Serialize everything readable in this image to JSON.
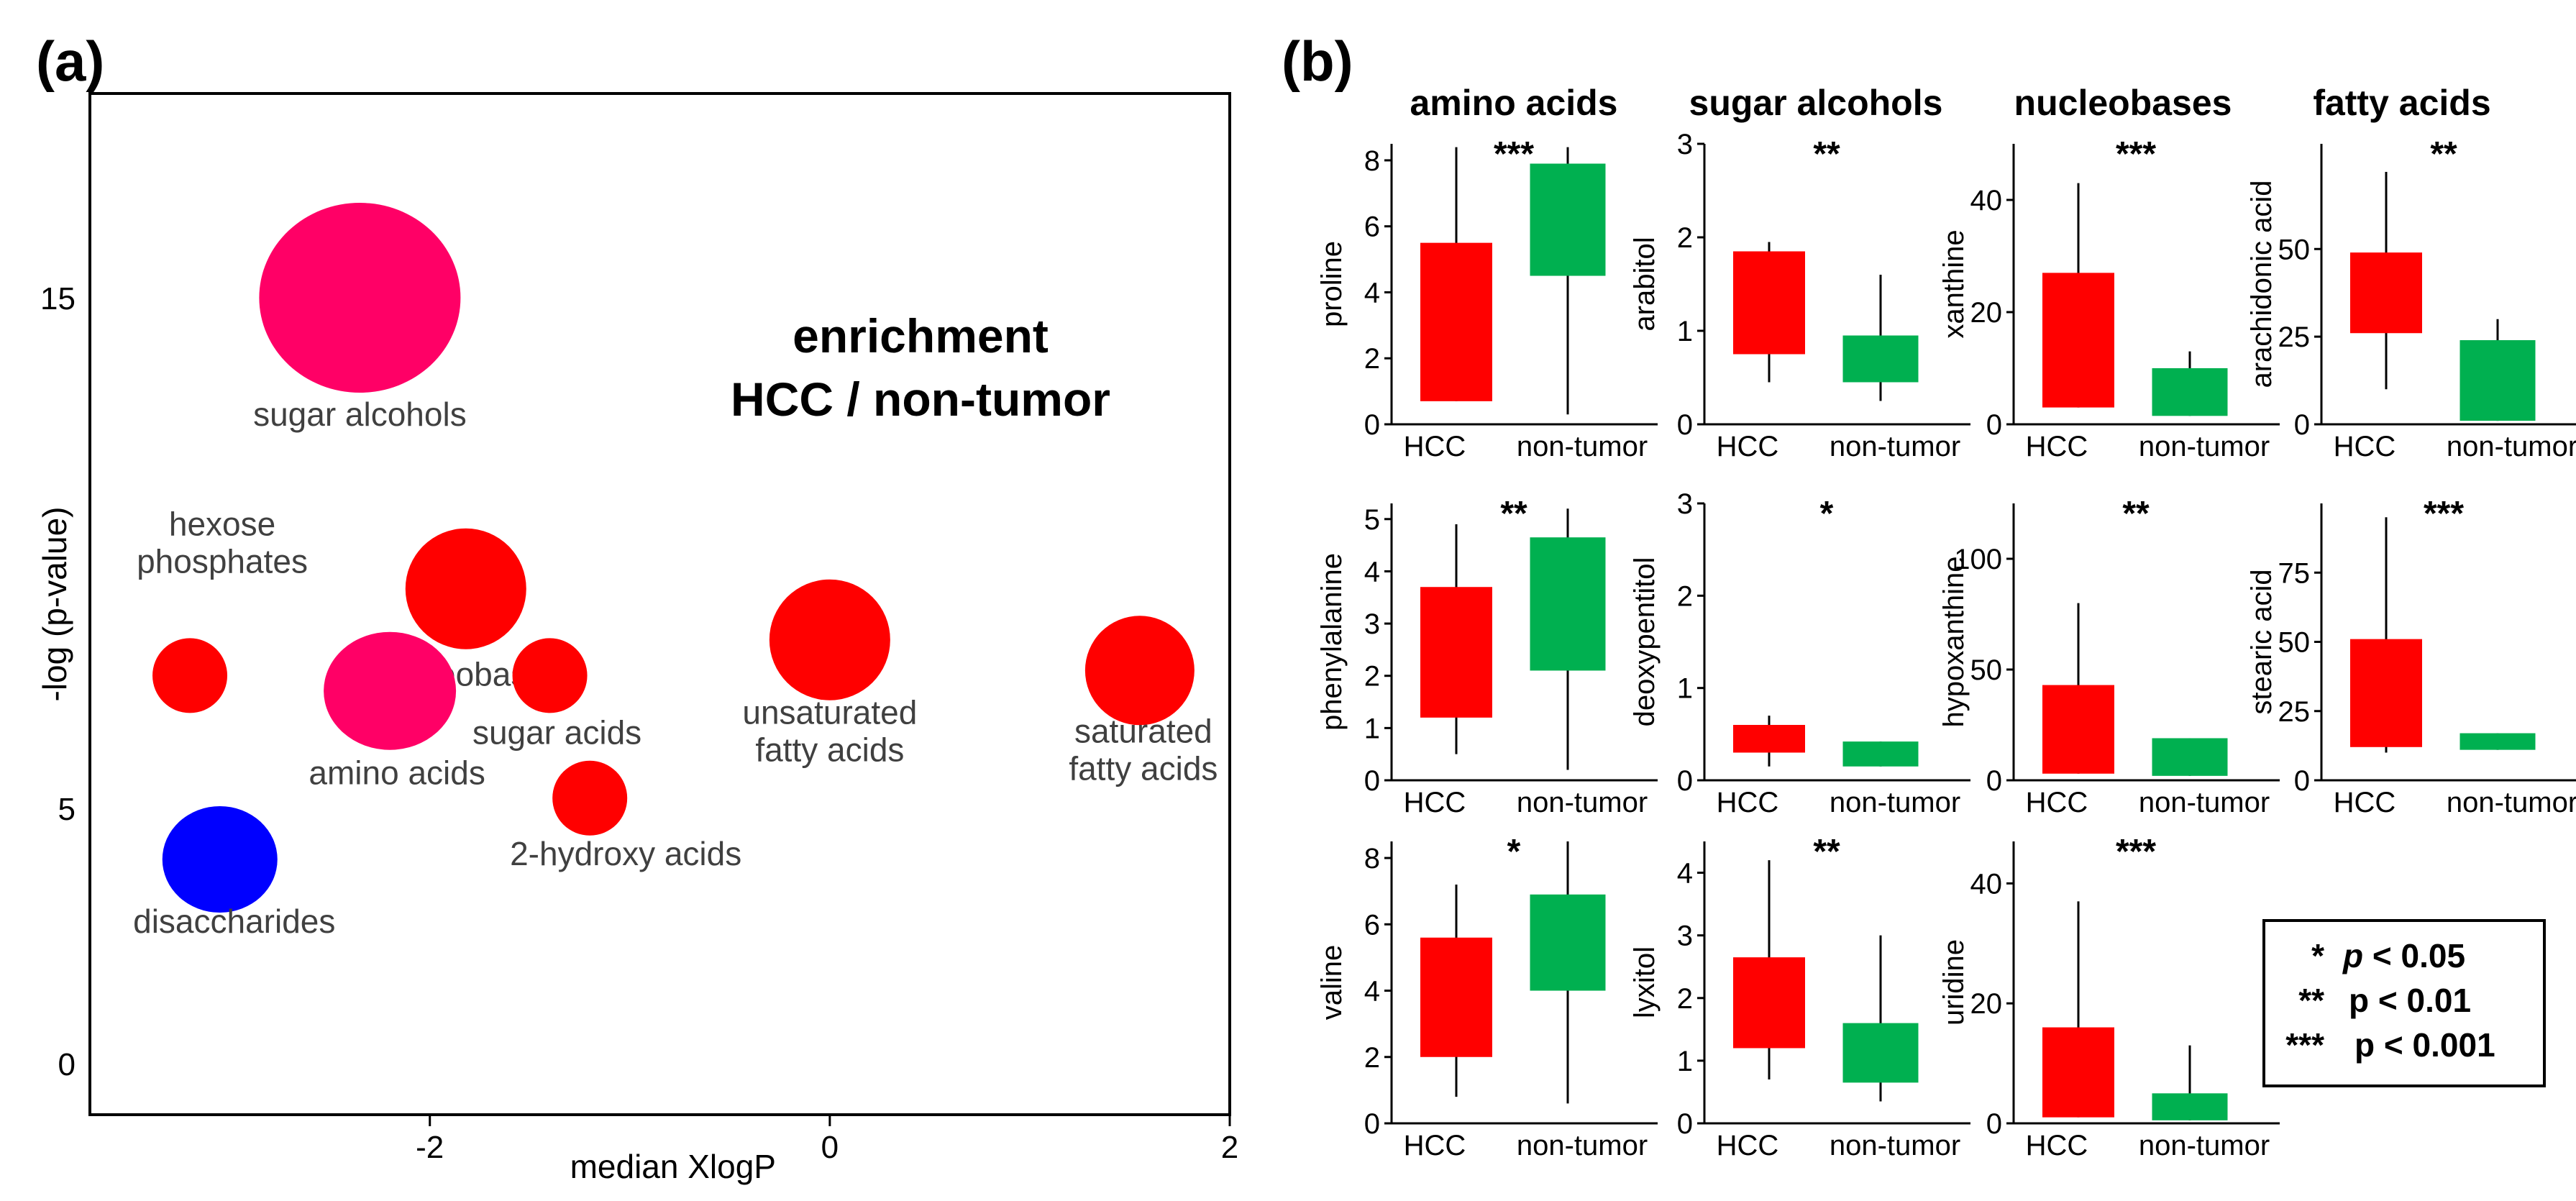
{
  "panel_a_label": "(a)",
  "panel_b_label": "(b)",
  "chart_data": [
    {
      "type": "scatter",
      "panel": "(a)",
      "annotation_lines": [
        "enrichment",
        "HCC / non-tumor"
      ],
      "xlabel": "median XlogP",
      "ylabel": "-log (p-value)",
      "xlim": [
        -3.7,
        2
      ],
      "ylim": [
        -1,
        19
      ],
      "xticks": [
        -2,
        0,
        2
      ],
      "yticks": [
        0,
        5,
        15
      ],
      "legend": "none",
      "points": [
        {
          "label": [
            "sugar alcohols"
          ],
          "x": -2.35,
          "y": 15.0,
          "color": "#ff0066"
        },
        {
          "label": [
            "nucleobases"
          ],
          "x": -1.82,
          "y": 9.3,
          "color": "#ff0000"
        },
        {
          "label": [
            "hexose",
            "phosphates"
          ],
          "x": -3.2,
          "y": 7.6,
          "color": "#ff0000"
        },
        {
          "label": [
            "amino acids"
          ],
          "x": -2.2,
          "y": 7.3,
          "color": "#ff0066"
        },
        {
          "label": [
            "sugar acids"
          ],
          "x": -1.4,
          "y": 7.6,
          "color": "#ff0000"
        },
        {
          "label": [
            "2-hydroxy acids"
          ],
          "x": -1.2,
          "y": 5.2,
          "color": "#ff0000"
        },
        {
          "label": [
            "unsaturated",
            "fatty acids"
          ],
          "x": 0.0,
          "y": 8.3,
          "color": "#ff0000"
        },
        {
          "label": [
            "saturated",
            "fatty acids"
          ],
          "x": 1.55,
          "y": 7.7,
          "color": "#ff0000"
        },
        {
          "label": [
            "disaccharides"
          ],
          "x": -3.05,
          "y": 4.0,
          "color": "#0000ff"
        }
      ]
    },
    {
      "type": "box",
      "panel": "(b)",
      "categories": [
        "HCC",
        "non-tumor"
      ],
      "colors": {
        "HCC": "#ff0000",
        "non-tumor": "#00b050"
      },
      "columns": [
        "amino acids",
        "sugar alcohols",
        "nucleobases",
        "fatty acids"
      ],
      "plots": [
        {
          "ylabel": "proline",
          "ylim": [
            0,
            8.5
          ],
          "yticks": [
            "0",
            "2",
            "4",
            "6",
            "8"
          ],
          "sig": "***",
          "boxes": [
            {
              "group": "HCC",
              "low": 0.7,
              "q1": 0.7,
              "q3": 5.5,
              "high": 8.4
            },
            {
              "group": "non-tumor",
              "low": 0.3,
              "q1": 4.5,
              "q3": 7.9,
              "high": 8.4
            }
          ]
        },
        {
          "ylabel": "arabitol",
          "ylim": [
            0,
            3
          ],
          "yticks": [
            "0",
            "1",
            "2",
            "3"
          ],
          "sig": "**",
          "boxes": [
            {
              "group": "HCC",
              "low": 0.45,
              "q1": 0.75,
              "q3": 1.85,
              "high": 1.95
            },
            {
              "group": "non-tumor",
              "low": 0.25,
              "q1": 0.45,
              "q3": 0.95,
              "high": 1.6
            }
          ]
        },
        {
          "ylabel": "xanthine",
          "ylim": [
            0,
            50
          ],
          "yticks": [
            "0",
            "20",
            "40"
          ],
          "sig": "***",
          "boxes": [
            {
              "group": "HCC",
              "low": 3,
              "q1": 3,
              "q3": 27,
              "high": 43
            },
            {
              "group": "non-tumor",
              "low": 1.5,
              "q1": 1.5,
              "q3": 10,
              "high": 13
            }
          ]
        },
        {
          "ylabel": "arachidonic acid",
          "ylim": [
            0,
            80
          ],
          "yticks": [
            "0",
            "25",
            "50"
          ],
          "sig": "**",
          "boxes": [
            {
              "group": "HCC",
              "low": 10,
              "q1": 26,
              "q3": 49,
              "high": 72
            },
            {
              "group": "non-tumor",
              "low": 1,
              "q1": 1,
              "q3": 24,
              "high": 30
            }
          ]
        },
        {
          "ylabel": "phenylalanine",
          "ylim": [
            0,
            5.3
          ],
          "yticks": [
            "0",
            "1",
            "2",
            "3",
            "4",
            "5"
          ],
          "sig": "**",
          "boxes": [
            {
              "group": "HCC",
              "low": 0.5,
              "q1": 1.2,
              "q3": 3.7,
              "high": 4.9
            },
            {
              "group": "non-tumor",
              "low": 0.2,
              "q1": 2.1,
              "q3": 4.65,
              "high": 5.2
            }
          ]
        },
        {
          "ylabel": "deoxypentitol",
          "ylim": [
            0,
            3
          ],
          "yticks": [
            "0",
            "1",
            "2",
            "3"
          ],
          "sig": "*",
          "boxes": [
            {
              "group": "HCC",
              "low": 0.15,
              "q1": 0.3,
              "q3": 0.6,
              "high": 0.7
            },
            {
              "group": "non-tumor",
              "low": 0.15,
              "q1": 0.15,
              "q3": 0.42,
              "high": 0.42
            }
          ]
        },
        {
          "ylabel": "hypoxanthine",
          "ylim": [
            0,
            125
          ],
          "yticks": [
            "0",
            "50",
            "100"
          ],
          "sig": "**",
          "boxes": [
            {
              "group": "HCC",
              "low": 3,
              "q1": 3,
              "q3": 43,
              "high": 80
            },
            {
              "group": "non-tumor",
              "low": 2,
              "q1": 2,
              "q3": 19,
              "high": 19
            }
          ]
        },
        {
          "ylabel": "stearic acid",
          "ylim": [
            0,
            100
          ],
          "yticks": [
            "0",
            "25",
            "50",
            "75"
          ],
          "sig": "***",
          "boxes": [
            {
              "group": "HCC",
              "low": 10,
              "q1": 12,
              "q3": 51,
              "high": 95
            },
            {
              "group": "non-tumor",
              "low": 11,
              "q1": 11,
              "q3": 17,
              "high": 17
            }
          ]
        },
        {
          "ylabel": "valine",
          "ylim": [
            0,
            8.5
          ],
          "yticks": [
            "0",
            "2",
            "4",
            "6",
            "8"
          ],
          "sig": "*",
          "boxes": [
            {
              "group": "HCC",
              "low": 0.8,
              "q1": 2.0,
              "q3": 5.6,
              "high": 7.2
            },
            {
              "group": "non-tumor",
              "low": 0.6,
              "q1": 4.0,
              "q3": 6.9,
              "high": 8.5
            }
          ]
        },
        {
          "ylabel": "lyxitol",
          "ylim": [
            0,
            4.5
          ],
          "yticks": [
            "0",
            "1",
            "2",
            "3",
            "4"
          ],
          "sig": "**",
          "boxes": [
            {
              "group": "HCC",
              "low": 0.7,
              "q1": 1.2,
              "q3": 2.65,
              "high": 4.2
            },
            {
              "group": "non-tumor",
              "low": 0.35,
              "q1": 0.65,
              "q3": 1.6,
              "high": 3.0
            }
          ]
        },
        {
          "ylabel": "uridine",
          "ylim": [
            0,
            47
          ],
          "yticks": [
            "0",
            "20",
            "40"
          ],
          "sig": "***",
          "boxes": [
            {
              "group": "HCC",
              "low": 1,
              "q1": 1,
              "q3": 16,
              "high": 37
            },
            {
              "group": "non-tumor",
              "low": 0.5,
              "q1": 0.5,
              "q3": 5,
              "high": 13
            }
          ]
        }
      ]
    }
  ],
  "legend_b": [
    {
      "stars": "*",
      "p": "p",
      "rest": "< 0.05"
    },
    {
      "stars": "**",
      "p": "p",
      "rest": "< 0.01"
    },
    {
      "stars": "***",
      "p": "p",
      "rest": "< 0.001"
    }
  ]
}
